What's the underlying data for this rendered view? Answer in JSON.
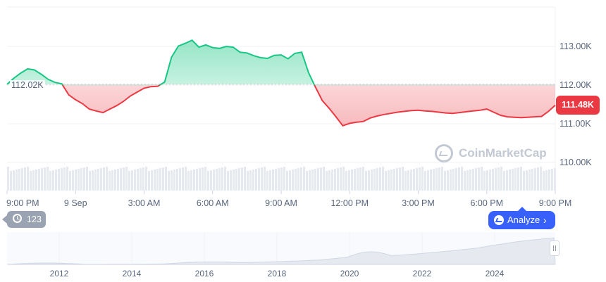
{
  "chart_data": [
    {
      "type": "area",
      "x_ticks": [
        "9:00 PM",
        "9 Sep",
        "3:00 AM",
        "6:00 AM",
        "9:00 AM",
        "12:00 PM",
        "3:00 PM",
        "6:00 PM",
        "9:00 PM"
      ],
      "y_ticks": [
        "113.00K",
        "112.00K",
        "111.00K",
        "110.00K"
      ],
      "ylim": [
        110000,
        113000
      ],
      "reference_value": 112020,
      "reference_label": "112.02K",
      "current_value": 111480,
      "current_label": "111.48K",
      "above_color": "#16c784",
      "below_color": "#ea3943",
      "grid": true,
      "x_hours": [
        0,
        0.3,
        0.6,
        0.9,
        1.2,
        1.5,
        1.8,
        2.1,
        2.4,
        2.7,
        3.0,
        3.3,
        3.6,
        3.9,
        4.2,
        4.5,
        4.8,
        5.1,
        5.4,
        5.7,
        6.0,
        6.3,
        6.6,
        6.9,
        7.2,
        7.5,
        7.8,
        8.1,
        8.4,
        8.7,
        9.0,
        9.3,
        9.6,
        9.9,
        10.2,
        10.5,
        10.8,
        11.1,
        11.4,
        11.7,
        12.0,
        12.3,
        12.6,
        12.9,
        13.2,
        13.5,
        13.8,
        14.1,
        14.4,
        14.7,
        15.0,
        15.3,
        15.6,
        15.9,
        16.2,
        16.5,
        16.8,
        17.1,
        17.4,
        17.7,
        18.0,
        18.3,
        18.6,
        18.9,
        19.2,
        19.5,
        19.8,
        20.1,
        20.4,
        20.7,
        21.0,
        21.3,
        21.6,
        21.9,
        22.2,
        22.5,
        22.8,
        23.1,
        23.4,
        23.7,
        24.0
      ],
      "values": [
        112020,
        112180,
        112310,
        112420,
        112390,
        112280,
        112150,
        112070,
        112030,
        111750,
        111620,
        111520,
        111380,
        111330,
        111290,
        111380,
        111470,
        111580,
        111720,
        111820,
        111920,
        111960,
        111970,
        112080,
        112720,
        113010,
        113080,
        113160,
        112980,
        113040,
        112970,
        112950,
        113000,
        112980,
        112850,
        112830,
        112760,
        112710,
        112690,
        112770,
        112780,
        112680,
        112820,
        112850,
        112320,
        111950,
        111600,
        111400,
        111180,
        110950,
        111010,
        111040,
        111060,
        111150,
        111200,
        111240,
        111270,
        111300,
        111320,
        111340,
        111350,
        111330,
        111320,
        111300,
        111280,
        111270,
        111290,
        111310,
        111330,
        111350,
        111380,
        111300,
        111220,
        111180,
        111170,
        111160,
        111170,
        111180,
        111190,
        111320,
        111480
      ]
    },
    {
      "type": "area",
      "x_ticks": [
        "2012",
        "2014",
        "2016",
        "2018",
        "2020",
        "2022",
        "2024"
      ]
    }
  ],
  "logo": {
    "text": "CoinMarketCap"
  },
  "events": {
    "count": "123"
  },
  "analyze": {
    "label": "Analyze"
  }
}
